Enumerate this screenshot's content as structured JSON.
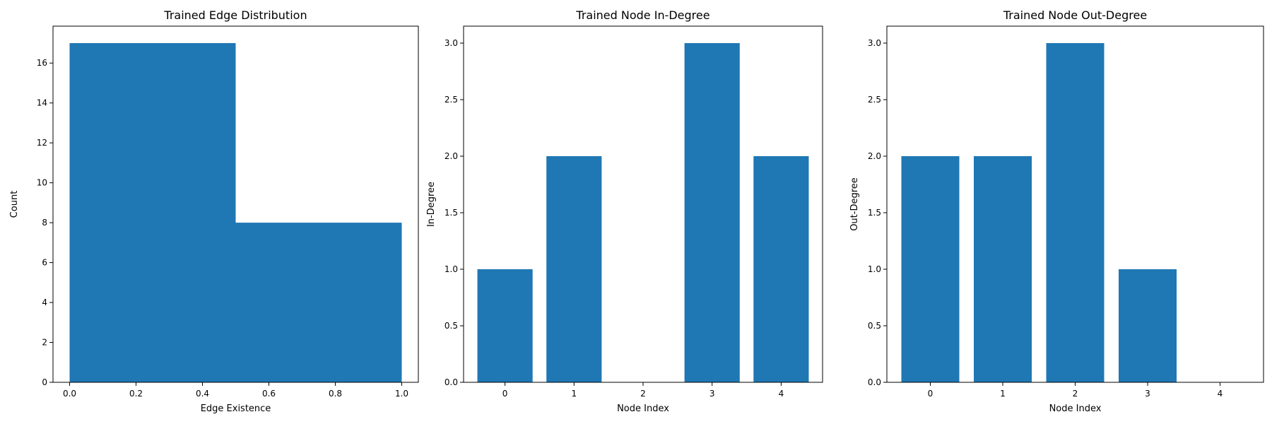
{
  "chart_data": [
    {
      "type": "bar",
      "subtype": "histogram",
      "title": "Trained Edge Distribution",
      "xlabel": "Edge Existence",
      "ylabel": "Count",
      "bins": [
        [
          0.0,
          0.5
        ],
        [
          0.5,
          1.0
        ]
      ],
      "values": [
        17,
        8
      ],
      "xlim": [
        -0.05,
        1.05
      ],
      "ylim": [
        0,
        17.85
      ],
      "xticks": [
        0.0,
        0.2,
        0.4,
        0.6,
        0.8,
        1.0
      ],
      "xtick_labels": [
        "0.0",
        "0.2",
        "0.4",
        "0.6",
        "0.8",
        "1.0"
      ],
      "yticks": [
        0,
        2,
        4,
        6,
        8,
        10,
        12,
        14,
        16
      ],
      "ytick_labels": [
        "0",
        "2",
        "4",
        "6",
        "8",
        "10",
        "12",
        "14",
        "16"
      ],
      "color": "#1f77b4",
      "grid": false
    },
    {
      "type": "bar",
      "title": "Trained Node In-Degree",
      "xlabel": "Node Index",
      "ylabel": "In-Degree",
      "categories": [
        "0",
        "1",
        "2",
        "3",
        "4"
      ],
      "values": [
        1,
        2,
        0,
        3,
        2
      ],
      "ylim": [
        0,
        3.15
      ],
      "yticks": [
        0.0,
        0.5,
        1.0,
        1.5,
        2.0,
        2.5,
        3.0
      ],
      "ytick_labels": [
        "0.0",
        "0.5",
        "1.0",
        "1.5",
        "2.0",
        "2.5",
        "3.0"
      ],
      "color": "#1f77b4",
      "grid": false
    },
    {
      "type": "bar",
      "title": "Trained Node Out-Degree",
      "xlabel": "Node Index",
      "ylabel": "Out-Degree",
      "categories": [
        "0",
        "1",
        "2",
        "3",
        "4"
      ],
      "values": [
        2,
        2,
        3,
        1,
        0
      ],
      "ylim": [
        0,
        3.15
      ],
      "yticks": [
        0.0,
        0.5,
        1.0,
        1.5,
        2.0,
        2.5,
        3.0
      ],
      "ytick_labels": [
        "0.0",
        "0.5",
        "1.0",
        "1.5",
        "2.0",
        "2.5",
        "3.0"
      ],
      "color": "#1f77b4",
      "grid": false
    }
  ]
}
